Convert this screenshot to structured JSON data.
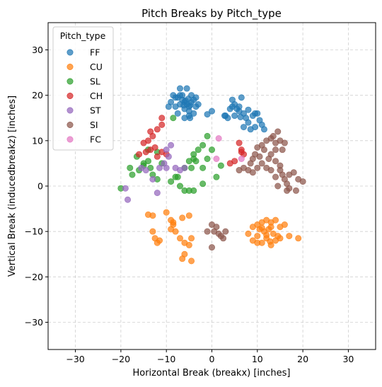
{
  "chart_data": {
    "type": "scatter",
    "title": "Pitch Breaks by Pitch_type",
    "xlabel": "Horizontal Break (breakx) [inches]",
    "ylabel": "Vertical Break (inducedbreakz) [inches]",
    "xlim": [
      -36,
      36
    ],
    "ylim": [
      -36,
      36
    ],
    "xticks": [
      -30,
      -20,
      -10,
      0,
      10,
      20,
      30
    ],
    "yticks": [
      -30,
      -20,
      -10,
      0,
      10,
      20,
      30
    ],
    "grid": true,
    "legend": {
      "title": "Pitch_type",
      "position": "top-left"
    },
    "series": [
      {
        "name": "FF",
        "color": "#1f77b4",
        "points": [
          [
            -8,
            17.5
          ],
          [
            -7.5,
            19.5
          ],
          [
            -7,
            20
          ],
          [
            -6.5,
            19
          ],
          [
            -6,
            18.5
          ],
          [
            -5.5,
            18
          ],
          [
            -5,
            17.5
          ],
          [
            -4.5,
            18.5
          ],
          [
            -4,
            19
          ],
          [
            -6,
            17
          ],
          [
            -5,
            16.5
          ],
          [
            -7,
            18
          ],
          [
            -8,
            19.5
          ],
          [
            -8.5,
            20
          ],
          [
            -7,
            21.5
          ],
          [
            -5.5,
            21.5
          ],
          [
            -4.5,
            20
          ],
          [
            -3.5,
            19.5
          ],
          [
            -3.5,
            17.5
          ],
          [
            -4,
            16
          ],
          [
            -5,
            15.5
          ],
          [
            -6,
            15
          ],
          [
            -7.5,
            16
          ],
          [
            -9,
            18.5
          ],
          [
            -9.5,
            17.5
          ],
          [
            -6.5,
            20
          ],
          [
            -5.8,
            18.8
          ],
          [
            -6.2,
            17.8
          ],
          [
            -4.8,
            17.8
          ],
          [
            -5.2,
            19.2
          ],
          [
            -3,
            18
          ],
          [
            -4.8,
            15
          ],
          [
            -1,
            15.8
          ],
          [
            0,
            16.5
          ],
          [
            3,
            15.5
          ],
          [
            3.5,
            15
          ],
          [
            4,
            17
          ],
          [
            4.5,
            19
          ],
          [
            5,
            18
          ],
          [
            5.5,
            17
          ],
          [
            6,
            16.5
          ],
          [
            6.5,
            19.5
          ],
          [
            7,
            16
          ],
          [
            7.5,
            15
          ],
          [
            8,
            14
          ],
          [
            7,
            13
          ],
          [
            8.5,
            12.5
          ],
          [
            9,
            15.5
          ],
          [
            9.5,
            13
          ],
          [
            10,
            16
          ],
          [
            10.5,
            14.5
          ],
          [
            11,
            13.5
          ],
          [
            6,
            17.5
          ],
          [
            5,
            15.5
          ],
          [
            2.8,
            15.5
          ],
          [
            6.3,
            15.2
          ],
          [
            8,
            16.8
          ],
          [
            9.5,
            16
          ],
          [
            4.5,
            17.5
          ],
          [
            11.5,
            12.5
          ]
        ]
      },
      {
        "name": "CU",
        "color": "#ff7f0e",
        "points": [
          [
            -14,
            -6.3
          ],
          [
            -13,
            -6.5
          ],
          [
            -10,
            -5.8
          ],
          [
            -9,
            -7.5
          ],
          [
            -8.5,
            -8.5
          ],
          [
            -9,
            -9.5
          ],
          [
            -8,
            -10
          ],
          [
            -7,
            -11.5
          ],
          [
            -6,
            -12.5
          ],
          [
            -5,
            -13
          ],
          [
            -6,
            -15
          ],
          [
            -6.5,
            -16
          ],
          [
            -4.5,
            -16.5
          ],
          [
            -4.5,
            -11.5
          ],
          [
            -5,
            -6.5
          ],
          [
            -6.5,
            -7
          ],
          [
            -11.5,
            -12
          ],
          [
            -12,
            -12.5
          ],
          [
            -12.5,
            -11.5
          ],
          [
            -13,
            -10
          ],
          [
            -8.5,
            -8
          ],
          [
            9,
            -9
          ],
          [
            10,
            -8.5
          ],
          [
            11,
            -8
          ],
          [
            12,
            -7.5
          ],
          [
            13,
            -8
          ],
          [
            14,
            -7.5
          ],
          [
            15,
            -9
          ],
          [
            16,
            -8.5
          ],
          [
            17,
            -11
          ],
          [
            19,
            -11.5
          ],
          [
            10,
            -11
          ],
          [
            11,
            -12.5
          ],
          [
            12,
            -11.5
          ],
          [
            13,
            -13
          ],
          [
            14,
            -12
          ],
          [
            15,
            -11.5
          ],
          [
            11.5,
            -10
          ],
          [
            12.5,
            -9.5
          ],
          [
            13.5,
            -10.5
          ],
          [
            10.5,
            -9.5
          ],
          [
            12,
            -10.8
          ],
          [
            13,
            -9
          ],
          [
            8,
            -10.5
          ],
          [
            9,
            -12
          ],
          [
            14.5,
            -11
          ],
          [
            11,
            -9.2
          ],
          [
            12.8,
            -12.2
          ],
          [
            10,
            -12.5
          ]
        ]
      },
      {
        "name": "SL",
        "color": "#2ca02c",
        "points": [
          [
            -20,
            -0.5
          ],
          [
            -17.5,
            2.5
          ],
          [
            -16,
            3.5
          ],
          [
            -15,
            4.5
          ],
          [
            -16.5,
            6.5
          ],
          [
            -15,
            5
          ],
          [
            -14,
            5.5
          ],
          [
            -13,
            2.5
          ],
          [
            -12,
            1.5
          ],
          [
            -11,
            5
          ],
          [
            -9,
            1
          ],
          [
            -8,
            2
          ],
          [
            -7.5,
            2
          ],
          [
            -7,
            0
          ],
          [
            -6,
            -1
          ],
          [
            -5,
            -1
          ],
          [
            -4,
            -1
          ],
          [
            -5,
            5.5
          ],
          [
            -4,
            6
          ],
          [
            -4,
            7
          ],
          [
            -3,
            8
          ],
          [
            -2,
            9
          ],
          [
            -1,
            11
          ],
          [
            -1,
            6
          ],
          [
            -2,
            4
          ],
          [
            -4.5,
            4
          ],
          [
            -6,
            4
          ],
          [
            -2,
            0.5
          ],
          [
            0,
            8
          ],
          [
            2,
            4.5
          ],
          [
            1,
            2
          ],
          [
            -14,
            8
          ],
          [
            -13.5,
            4
          ],
          [
            -18,
            4
          ],
          [
            -8.5,
            15
          ],
          [
            -3.5,
            5.5
          ],
          [
            -12,
            7.5
          ]
        ]
      },
      {
        "name": "CH",
        "color": "#d62728",
        "points": [
          [
            -13.5,
            8
          ],
          [
            -14.5,
            7.5
          ],
          [
            -14,
            10
          ],
          [
            -13,
            11
          ],
          [
            -12,
            12.5
          ],
          [
            -11,
            13.5
          ],
          [
            -11,
            15
          ],
          [
            -10,
            7
          ],
          [
            -11,
            7.5
          ],
          [
            -12,
            6.5
          ],
          [
            -13.5,
            12
          ],
          [
            -15,
            9.5
          ],
          [
            -16,
            7
          ],
          [
            -12.5,
            8.5
          ],
          [
            6,
            9.5
          ],
          [
            6.5,
            8
          ],
          [
            7,
            7
          ],
          [
            5,
            5.5
          ],
          [
            4,
            5
          ],
          [
            6.5,
            7.5
          ]
        ]
      },
      {
        "name": "ST",
        "color": "#9467bd",
        "points": [
          [
            -19,
            -0.5
          ],
          [
            -18.5,
            -3
          ],
          [
            -15.5,
            4
          ],
          [
            -14.5,
            3.5
          ],
          [
            -13,
            1.5
          ],
          [
            -11.5,
            4
          ],
          [
            -10,
            4
          ],
          [
            -10.5,
            5
          ],
          [
            -9,
            9
          ],
          [
            -10,
            8
          ],
          [
            -9.5,
            6.5
          ],
          [
            -8,
            4
          ],
          [
            -6,
            4
          ],
          [
            -12,
            -1.5
          ],
          [
            -7,
            3.5
          ]
        ]
      },
      {
        "name": "SI",
        "color": "#8c564b",
        "points": [
          [
            0,
            -8.5
          ],
          [
            1,
            -9
          ],
          [
            0.5,
            -10
          ],
          [
            1.5,
            -10.5
          ],
          [
            2,
            -11
          ],
          [
            3,
            -10
          ],
          [
            -1,
            -10
          ],
          [
            0,
            -13.5
          ],
          [
            2.5,
            -11.5
          ],
          [
            6,
            3.5
          ],
          [
            7,
            4
          ],
          [
            8,
            3.5
          ],
          [
            8.5,
            5
          ],
          [
            9,
            6
          ],
          [
            9.5,
            7
          ],
          [
            10,
            8.5
          ],
          [
            11,
            9
          ],
          [
            11.5,
            8
          ],
          [
            12,
            10
          ],
          [
            13,
            10.5
          ],
          [
            13.5,
            11
          ],
          [
            14,
            9.5
          ],
          [
            14.5,
            12
          ],
          [
            15,
            10
          ],
          [
            15.5,
            8
          ],
          [
            16,
            9.5
          ],
          [
            14,
            8
          ],
          [
            13,
            7
          ],
          [
            12.5,
            6
          ],
          [
            11,
            5
          ],
          [
            10,
            4
          ],
          [
            9,
            3
          ],
          [
            13,
            3.5
          ],
          [
            14,
            5.5
          ],
          [
            15,
            4.5
          ],
          [
            15.5,
            2.5
          ],
          [
            16,
            1.5
          ],
          [
            16.5,
            0.5
          ],
          [
            17,
            -0.5
          ],
          [
            18.5,
            -1
          ],
          [
            19,
            1.5
          ],
          [
            20,
            1
          ],
          [
            14,
            2
          ],
          [
            15,
            3.5
          ],
          [
            17,
            2.5
          ],
          [
            16.5,
            -1
          ],
          [
            18,
            3
          ],
          [
            14.5,
            0
          ],
          [
            10.5,
            6.5
          ],
          [
            12,
            4
          ]
        ]
      },
      {
        "name": "FC",
        "color": "#e377c2",
        "points": [
          [
            1,
            6
          ],
          [
            6.5,
            6
          ],
          [
            1.5,
            10.5
          ]
        ]
      }
    ]
  }
}
